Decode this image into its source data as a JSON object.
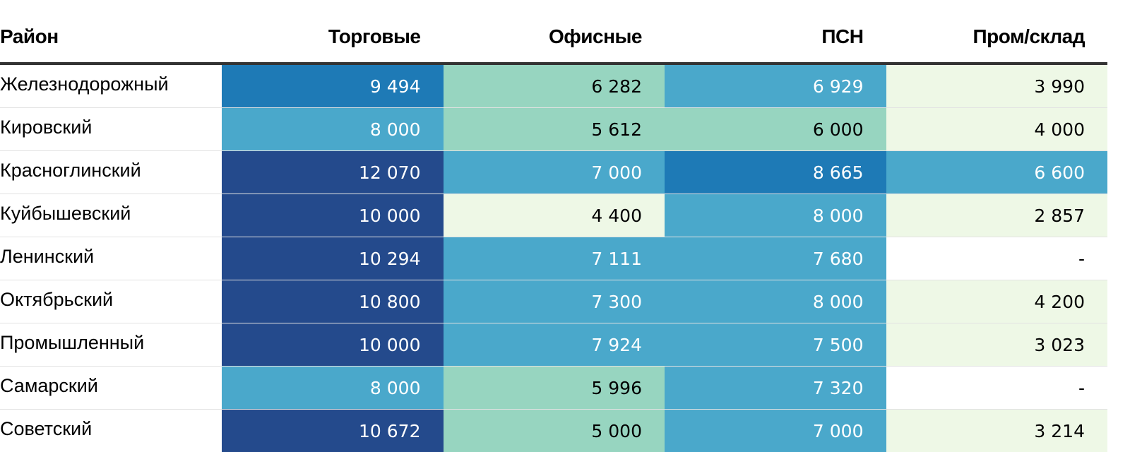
{
  "chart_data": {
    "type": "table",
    "columns": [
      "Район",
      "Торговые",
      "Офисные",
      "ПСН",
      "Пром/склад"
    ],
    "rows": [
      {
        "name": "Железнодорожный",
        "values": [
          "9 494",
          "6 282",
          "6 929",
          "3 990"
        ]
      },
      {
        "name": "Кировский",
        "values": [
          "8 000",
          "5 612",
          "6 000",
          "4 000"
        ]
      },
      {
        "name": "Красноглинский",
        "values": [
          "12 070",
          "7 000",
          "8 665",
          "6 600"
        ]
      },
      {
        "name": "Куйбышевский",
        "values": [
          "10 000",
          "4 400",
          "8 000",
          "2 857"
        ]
      },
      {
        "name": "Ленинский",
        "values": [
          "10 294",
          "7 111",
          "7 680",
          "-"
        ]
      },
      {
        "name": "Октябрьский",
        "values": [
          "10 800",
          "7 300",
          "8 000",
          "4 200"
        ]
      },
      {
        "name": "Промышленный",
        "values": [
          "10 000",
          "7 924",
          "7 500",
          "3 023"
        ]
      },
      {
        "name": "Самарский",
        "values": [
          "8 000",
          "5 996",
          "7 320",
          "-"
        ]
      },
      {
        "name": "Советский",
        "values": [
          "10 672",
          "5 000",
          "7 000",
          "3 214"
        ]
      }
    ],
    "color_scale": [
      {
        "min": 0,
        "max": 5000,
        "bg": "#eef8e6",
        "fg": "#000000"
      },
      {
        "min": 5000,
        "max": 6500,
        "bg": "#97d5c0",
        "fg": "#000000"
      },
      {
        "min": 6500,
        "max": 8500,
        "bg": "#4aa8cb",
        "fg": "#ffffff"
      },
      {
        "min": 8500,
        "max": 10000,
        "bg": "#1e7ab6",
        "fg": "#ffffff"
      },
      {
        "min": 10000,
        "max": 13000,
        "bg": "#244a8c",
        "fg": "#ffffff"
      }
    ],
    "empty_cell": {
      "bg": "#ffffff",
      "fg": "#000000"
    }
  }
}
